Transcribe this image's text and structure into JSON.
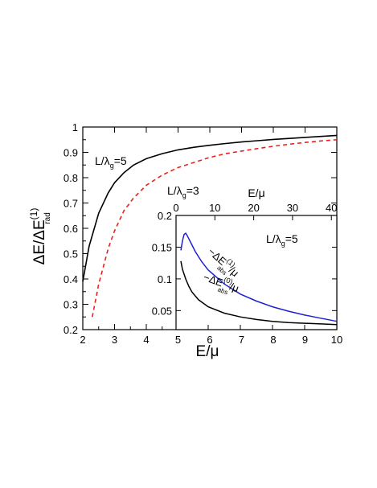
{
  "chart_data": [
    {
      "type": "line",
      "xlabel": "E/μ",
      "ylabel_main": "ΔE/ΔE",
      "ylabel_sup": "(1)",
      "ylabel_sub": "rad",
      "xlim": [
        2,
        10
      ],
      "ylim": [
        0.2,
        1.0
      ],
      "xticks": [
        2,
        3,
        4,
        5,
        6,
        7,
        8,
        9,
        10
      ],
      "yticks": [
        0.2,
        0.3,
        0.4,
        0.5,
        0.6,
        0.7,
        0.8,
        0.9,
        1
      ],
      "ytick_labels": [
        "0.2",
        "0.3",
        "0.4",
        "0.5",
        "0.6",
        "0.7",
        "0.8",
        "0.9",
        "1"
      ],
      "grid": false,
      "series": [
        {
          "color": "#000000",
          "dash": "solid",
          "x": [
            2.0,
            2.2,
            2.5,
            2.8,
            3.0,
            3.3,
            3.6,
            4.0,
            4.5,
            5.0,
            5.5,
            6.0,
            6.5,
            7.0,
            7.5,
            8.0,
            8.5,
            9.0,
            9.5,
            10.0
          ],
          "y": [
            0.39,
            0.53,
            0.66,
            0.74,
            0.78,
            0.82,
            0.85,
            0.875,
            0.895,
            0.91,
            0.92,
            0.928,
            0.935,
            0.941,
            0.946,
            0.951,
            0.955,
            0.959,
            0.963,
            0.967
          ]
        },
        {
          "color": "#e8231d",
          "dash": "dashed",
          "x": [
            2.3,
            2.5,
            2.8,
            3.0,
            3.3,
            3.6,
            4.0,
            4.5,
            5.0,
            5.5,
            6.0,
            6.5,
            7.0,
            7.5,
            8.0,
            8.5,
            9.0,
            9.5,
            10.0
          ],
          "y": [
            0.25,
            0.38,
            0.52,
            0.59,
            0.67,
            0.72,
            0.77,
            0.81,
            0.84,
            0.86,
            0.88,
            0.895,
            0.905,
            0.915,
            0.924,
            0.932,
            0.939,
            0.945,
            0.95
          ]
        }
      ],
      "annotations": [
        {
          "main": "L/λ",
          "sub": "g",
          "rest": "=5",
          "x": 2.45,
          "y": 0.885
        },
        {
          "main": "L/λ",
          "sub": "g",
          "rest": "=3",
          "x": 4.15,
          "y": 0.78
        }
      ]
    },
    {
      "type": "line",
      "inset": true,
      "xlim_bottom": [
        5,
        10
      ],
      "xlim_top": [
        0,
        41.4
      ],
      "top_xlabel": "E/μ",
      "ylim": [
        0.02,
        0.2
      ],
      "xticks_top": [
        0,
        10,
        20,
        30,
        40
      ],
      "yticks": [
        0.05,
        0.1,
        0.15,
        0.2
      ],
      "ytick_labels": [
        "0.05",
        "0.1",
        "0.15",
        "0.2"
      ],
      "grid": false,
      "series": [
        {
          "color": "#1f1fd6",
          "dash": "solid",
          "x": [
            5.15,
            5.2,
            5.25,
            5.3,
            5.35,
            5.45,
            5.6,
            5.8,
            6.0,
            6.5,
            7.0,
            7.5,
            8.0,
            8.5,
            9.0,
            9.5,
            10.0
          ],
          "y": [
            0.145,
            0.16,
            0.17,
            0.172,
            0.168,
            0.158,
            0.143,
            0.127,
            0.114,
            0.092,
            0.076,
            0.065,
            0.056,
            0.049,
            0.043,
            0.038,
            0.033
          ]
        },
        {
          "color": "#000000",
          "dash": "solid",
          "x": [
            5.15,
            5.2,
            5.3,
            5.4,
            5.5,
            5.7,
            6.0,
            6.5,
            7.0,
            7.5,
            8.0,
            8.5,
            9.0,
            9.5,
            10.0
          ],
          "y": [
            0.128,
            0.115,
            0.1,
            0.088,
            0.079,
            0.067,
            0.056,
            0.046,
            0.04,
            0.036,
            0.033,
            0.031,
            0.03,
            0.029,
            0.028
          ]
        }
      ],
      "annotations": [
        {
          "main": "L/λ",
          "sub": "g",
          "rest": "=5"
        },
        {
          "prefix": "−ΔE",
          "sup": "(1)",
          "sub": "abs",
          "suffix": "/μ"
        },
        {
          "prefix": "−ΔE",
          "sup": "(0)",
          "sub": "abs",
          "suffix": "/μ"
        }
      ]
    }
  ]
}
